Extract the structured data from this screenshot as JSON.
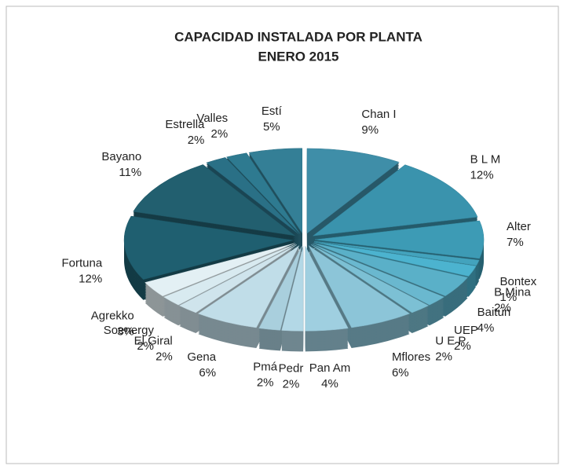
{
  "chart_data": {
    "type": "pie",
    "title": "CAPACIDAD INSTALADA POR PLANTA",
    "subtitle": "ENERO 2015",
    "categories": [
      "Chan I",
      "B L M",
      "Alter",
      "Bontex",
      "B Mina",
      "Baitún",
      "UEP",
      "U E P",
      "Mflores",
      "Pan Am",
      "Pedr",
      "Pmá",
      "Gena",
      "El Giral",
      "Soenergy",
      "Agrekko",
      "Fortuna",
      "Bayano",
      "Estrella",
      "Valles",
      "Estí"
    ],
    "values": [
      9,
      12,
      7,
      1,
      2,
      4,
      2,
      2,
      6,
      4,
      2,
      2,
      6,
      2,
      2,
      3,
      12,
      11,
      2,
      2,
      5
    ],
    "value_labels": [
      "9%",
      "12%",
      "7%",
      "1%",
      "2%",
      "4%",
      "2%",
      "2%",
      "6%",
      "4%",
      "2%",
      "2%",
      "6%",
      "2%",
      "2%",
      "3%",
      "12%",
      "11%",
      "2%",
      "2%",
      "5%"
    ],
    "colors": [
      "#3f8ea8",
      "#3a93ad",
      "#3d9bb5",
      "#43a3bd",
      "#4cb3cf",
      "#5ab0c8",
      "#6ab8cf",
      "#7cc0d4",
      "#8cc5d8",
      "#9fcfe0",
      "#b3d8e6",
      "#a9cfdd",
      "#c0dde8",
      "#cfe4ec",
      "#d8eaf0",
      "#e3f0f4",
      "#1f5f70",
      "#225f6f",
      "#2a7086",
      "#2e7a90",
      "#347f96"
    ]
  }
}
